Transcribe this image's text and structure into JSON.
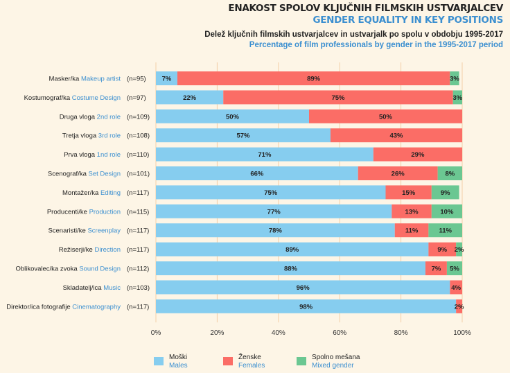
{
  "header": {
    "title_sl": "ENAKOST SPOLOV KLJUČNIH FILMSKIH USTVARJALCEV",
    "title_en": "GENDER EQUALITY IN KEY POSITIONS",
    "subtitle_sl": "Delež ključnih filmskih ustvarjalcev in ustvarjalk po spolu v obdobju 1995-2017",
    "subtitle_en": "Percentage of film professionals by gender in the 1995-2017 period"
  },
  "colors": {
    "male": "#86cdef",
    "female": "#fb6d66",
    "mixed": "#6bc792",
    "accent": "#3b8fd0",
    "grid": "#f3cfa8"
  },
  "legend": {
    "male": {
      "sl": "Moški",
      "en": "Males"
    },
    "female": {
      "sl": "Ženske",
      "en": "Females"
    },
    "mixed": {
      "sl": "Spolno mešana",
      "en": "Mixed gender"
    }
  },
  "chart_data": {
    "type": "bar",
    "orientation": "horizontal",
    "stacked": true,
    "categories": [
      {
        "sl": "Masker/ka",
        "en": "Makeup artist",
        "n": "(n=95)"
      },
      {
        "sl": "Kostumograf/ka",
        "en": "Costume Design",
        "n": "(n=97)"
      },
      {
        "sl": "Druga vloga",
        "en": "2nd role",
        "n": "(n=109)"
      },
      {
        "sl": "Tretja vloga",
        "en": "3rd role",
        "n": "(n=108)"
      },
      {
        "sl": "Prva vloga",
        "en": "1nd role",
        "n": "(n=110)"
      },
      {
        "sl": "Scenograf/ka",
        "en": "Set Design",
        "n": "(n=101)"
      },
      {
        "sl": "Montažer/ka",
        "en": "Editing",
        "n": "(n=117)"
      },
      {
        "sl": "Producenti/ke",
        "en": "Production",
        "n": "(n=115)"
      },
      {
        "sl": "Scenaristi/ke",
        "en": "Screenplay",
        "n": "(n=117)"
      },
      {
        "sl": "Režiserji/ke",
        "en": "Direction",
        "n": "(n=117)"
      },
      {
        "sl": "Oblikovalec/ka zvoka",
        "en": "Sound Design",
        "n": "(n=112)"
      },
      {
        "sl": "Skladatelj/ica",
        "en": "Music",
        "n": "(n=103)"
      },
      {
        "sl": "Direktor/ica fotografije",
        "en": "Cinematography",
        "n": "(n=117)"
      }
    ],
    "series": [
      {
        "name": "Males",
        "key": "male",
        "values": [
          7,
          22,
          50,
          57,
          71,
          66,
          75,
          77,
          78,
          89,
          88,
          96,
          98
        ]
      },
      {
        "name": "Females",
        "key": "female",
        "values": [
          89,
          75,
          50,
          43,
          29,
          26,
          15,
          13,
          11,
          9,
          7,
          4,
          2
        ]
      },
      {
        "name": "Mixed gender",
        "key": "mixed",
        "values": [
          3,
          3,
          0,
          0,
          0,
          8,
          9,
          10,
          11,
          2,
          5,
          0,
          0
        ]
      }
    ],
    "xlim": [
      0,
      100
    ],
    "xticks": [
      "0%",
      "20%",
      "40%",
      "60%",
      "80%",
      "100%"
    ]
  }
}
